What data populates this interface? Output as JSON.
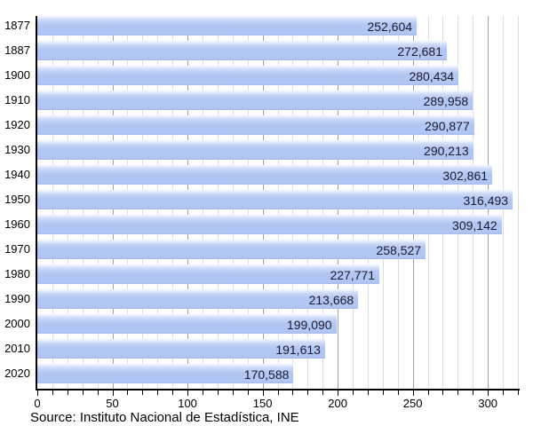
{
  "chart_data": {
    "type": "bar",
    "orientation": "horizontal",
    "title": "",
    "xlabel": "",
    "ylabel": "",
    "categories": [
      "1877",
      "1887",
      "1900",
      "1910",
      "1920",
      "1930",
      "1940",
      "1950",
      "1960",
      "1970",
      "1980",
      "1990",
      "2000",
      "2010",
      "2020"
    ],
    "values": [
      252604,
      272681,
      280434,
      289958,
      290877,
      290213,
      302861,
      316493,
      309142,
      258527,
      227771,
      213668,
      199090,
      191613,
      170588
    ],
    "value_labels": [
      "252,604",
      "272,681",
      "280,434",
      "289,958",
      "290,877",
      "290,213",
      "302,861",
      "316,493",
      "309,142",
      "258,527",
      "227,771",
      "213,668",
      "199,090",
      "191,613",
      "170,588"
    ],
    "xlim": [
      0,
      320
    ],
    "x_tick_labels": [
      "0",
      "50",
      "100",
      "150",
      "200",
      "250",
      "300"
    ],
    "x_tick_values": [
      0,
      50,
      100,
      150,
      200,
      250,
      300
    ],
    "minor_tick_step": 10,
    "major_tick_step": 50,
    "value_scale_note": "axis in thousands",
    "grid": "on",
    "legend": "none",
    "source": "Source: Instituto Nacional de Estadística, INE",
    "colors": {
      "bar_fill": "#b2c6f3",
      "bar_fill_top": "#f3f7fe",
      "bar_fill_bottom": "#a5bbf0",
      "bar_value_text": "#1a1a2e",
      "grid_minor": "#dcdcdc",
      "grid_major": "#a3a3a3",
      "axis": "#000000",
      "tick_text": "#000000",
      "background": "#ffffff"
    }
  }
}
